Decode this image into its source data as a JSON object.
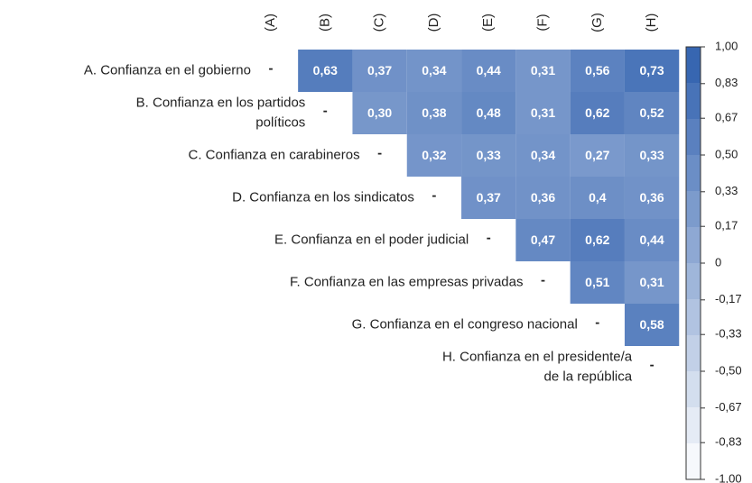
{
  "chart_data": {
    "type": "heatmap",
    "columns": [
      "(A)",
      "(B)",
      "(C)",
      "(D)",
      "(E)",
      "(F)",
      "(G)",
      "(H)"
    ],
    "rows": [
      [
        "A. Confianza en el gobierno"
      ],
      [
        "B. Confianza en los partidos",
        "políticos"
      ],
      [
        "C. Confianza en carabineros"
      ],
      [
        "D. Confianza en los sindicatos"
      ],
      [
        "E. Confianza en el poder judicial"
      ],
      [
        "F. Confianza en las empresas privadas"
      ],
      [
        "G. Confianza en el congreso nacional"
      ],
      [
        "H. Confianza en el presidente/a",
        "de la república"
      ]
    ],
    "diagonal_label": "-",
    "values": [
      [
        null,
        0.63,
        0.37,
        0.34,
        0.44,
        0.31,
        0.56,
        0.73
      ],
      [
        null,
        null,
        0.3,
        0.38,
        0.48,
        0.31,
        0.62,
        0.52
      ],
      [
        null,
        null,
        null,
        0.32,
        0.33,
        0.34,
        0.27,
        0.33
      ],
      [
        null,
        null,
        null,
        null,
        0.37,
        0.36,
        0.4,
        0.36
      ],
      [
        null,
        null,
        null,
        null,
        null,
        0.47,
        0.62,
        0.44
      ],
      [
        null,
        null,
        null,
        null,
        null,
        null,
        0.51,
        0.31
      ],
      [
        null,
        null,
        null,
        null,
        null,
        null,
        null,
        0.58
      ],
      [
        null,
        null,
        null,
        null,
        null,
        null,
        null,
        null
      ]
    ],
    "value_labels": [
      [
        null,
        "0,63",
        "0,37",
        "0,34",
        "0,44",
        "0,31",
        "0,56",
        "0,73"
      ],
      [
        null,
        null,
        "0,30",
        "0,38",
        "0,48",
        "0,31",
        "0,62",
        "0,52"
      ],
      [
        null,
        null,
        null,
        "0,32",
        "0,33",
        "0,34",
        "0,27",
        "0,33"
      ],
      [
        null,
        null,
        null,
        null,
        "0,37",
        "0,36",
        "0,4",
        "0,36"
      ],
      [
        null,
        null,
        null,
        null,
        null,
        "0,47",
        "0,62",
        "0,44"
      ],
      [
        null,
        null,
        null,
        null,
        null,
        null,
        "0,51",
        "0,31"
      ],
      [
        null,
        null,
        null,
        null,
        null,
        null,
        null,
        "0,58"
      ],
      [
        null,
        null,
        null,
        null,
        null,
        null,
        null,
        null
      ]
    ],
    "colorbar_lim": [
      -1,
      1
    ],
    "colorbar_ticks": [
      {
        "value": 1,
        "label": "1,00"
      },
      {
        "value": 0.83,
        "label": "0,83"
      },
      {
        "value": 0.67,
        "label": "0,67"
      },
      {
        "value": 0.5,
        "label": "0,50"
      },
      {
        "value": 0.33,
        "label": "0,33"
      },
      {
        "value": 0.17,
        "label": "0,17"
      },
      0,
      {
        "value": -0.17,
        "label": "-0,17"
      },
      {
        "value": -0.33,
        "label": "-0,33"
      },
      {
        "value": -0.5,
        "label": "-0,50"
      },
      {
        "value": -0.67,
        "label": "-0,67"
      },
      {
        "value": -0.83,
        "label": "-0,83"
      },
      {
        "value": -1,
        "label": "-1,00"
      }
    ],
    "color_low": "#ffffff",
    "color_high": "#2e5fae"
  }
}
